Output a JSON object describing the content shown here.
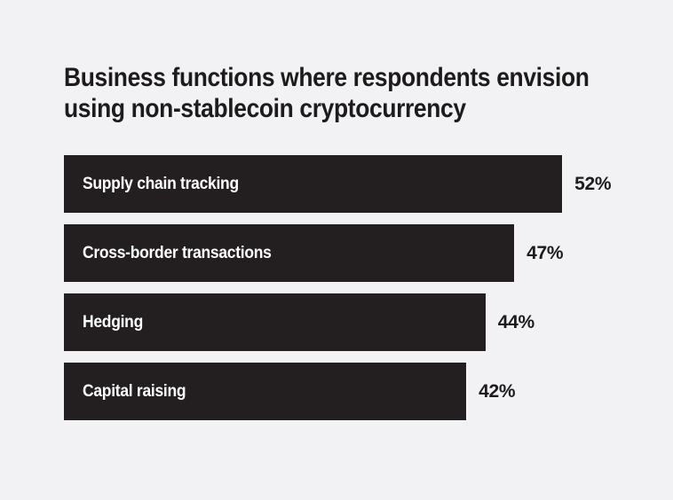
{
  "page": {
    "background": "#f2f1f3"
  },
  "header": {
    "title_line1": "Business functions where respondents envision",
    "title_line2": "using non-stablecoin cryptocurrency"
  },
  "chart_data": {
    "type": "bar",
    "orientation": "horizontal",
    "title": "Business functions where respondents envision using non-stablecoin cryptocurrency",
    "categories": [
      "Supply chain tracking",
      "Cross-border transactions",
      "Hedging",
      "Capital raising"
    ],
    "values": [
      52,
      47,
      44,
      42
    ],
    "value_labels": [
      "52%",
      "47%",
      "44%",
      "42%"
    ],
    "unit": "%",
    "xlim": [
      0,
      52
    ],
    "grid": false,
    "legend": "none",
    "bar_color": "#231f20",
    "bar_label_color": "#ffffff",
    "value_label_color": "#1d1b1c",
    "title_color": "#1d1b1c",
    "background_color": "#f2f1f3"
  }
}
